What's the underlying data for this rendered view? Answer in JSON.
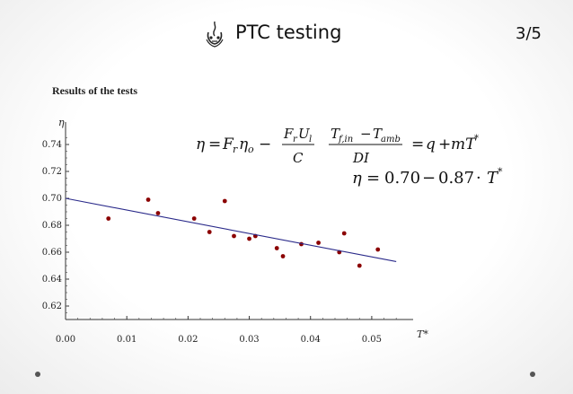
{
  "header": {
    "title": "PTC testing",
    "page_number": "3/5",
    "logo_icon": "university-seal-icon"
  },
  "section": {
    "label": "Results of the tests"
  },
  "chart_data": {
    "type": "scatter",
    "xlabel": "T*",
    "ylabel": "η",
    "xlim": [
      0.0,
      0.055
    ],
    "ylim": [
      0.61,
      0.75
    ],
    "x_ticks": [
      "0.00",
      "0.01",
      "0.02",
      "0.03",
      "0.04",
      "0.05"
    ],
    "x_tick_values": [
      0.0,
      0.01,
      0.02,
      0.03,
      0.04,
      0.05
    ],
    "y_ticks": [
      "0.62",
      "0.64",
      "0.66",
      "0.68",
      "0.70",
      "0.72",
      "0.74"
    ],
    "y_tick_values": [
      0.62,
      0.64,
      0.66,
      0.68,
      0.7,
      0.72,
      0.74
    ],
    "grid": false,
    "series": [
      {
        "kind": "points",
        "color": "#8b0000",
        "points": [
          {
            "x": 0.007,
            "y": 0.685
          },
          {
            "x": 0.0135,
            "y": 0.699
          },
          {
            "x": 0.0151,
            "y": 0.689
          },
          {
            "x": 0.021,
            "y": 0.685
          },
          {
            "x": 0.0235,
            "y": 0.675
          },
          {
            "x": 0.026,
            "y": 0.698
          },
          {
            "x": 0.0275,
            "y": 0.672
          },
          {
            "x": 0.03,
            "y": 0.67
          },
          {
            "x": 0.031,
            "y": 0.672
          },
          {
            "x": 0.0345,
            "y": 0.663
          },
          {
            "x": 0.0355,
            "y": 0.657
          },
          {
            "x": 0.0385,
            "y": 0.666
          },
          {
            "x": 0.0413,
            "y": 0.667
          },
          {
            "x": 0.0447,
            "y": 0.66
          },
          {
            "x": 0.0455,
            "y": 0.674
          },
          {
            "x": 0.048,
            "y": 0.65
          },
          {
            "x": 0.051,
            "y": 0.662
          }
        ]
      },
      {
        "kind": "fit-line",
        "color": "#2a2a8a",
        "intercept": 0.7,
        "slope": -0.87,
        "x_range": [
          0.0,
          0.054
        ]
      }
    ]
  },
  "formulas": {
    "line1_lhs": "η = FᵣηₒDASH",
    "model": "η = Fᵣηₒ − (FᵣUₗ/C)·(T_f,in − T_amb)/(DI) = q + mT*",
    "fit": "η = 0.70 − 0.87 · T*"
  },
  "nav": {
    "left_dot_icon": "nav-dot-icon",
    "right_dot_icon": "nav-dot-icon"
  }
}
